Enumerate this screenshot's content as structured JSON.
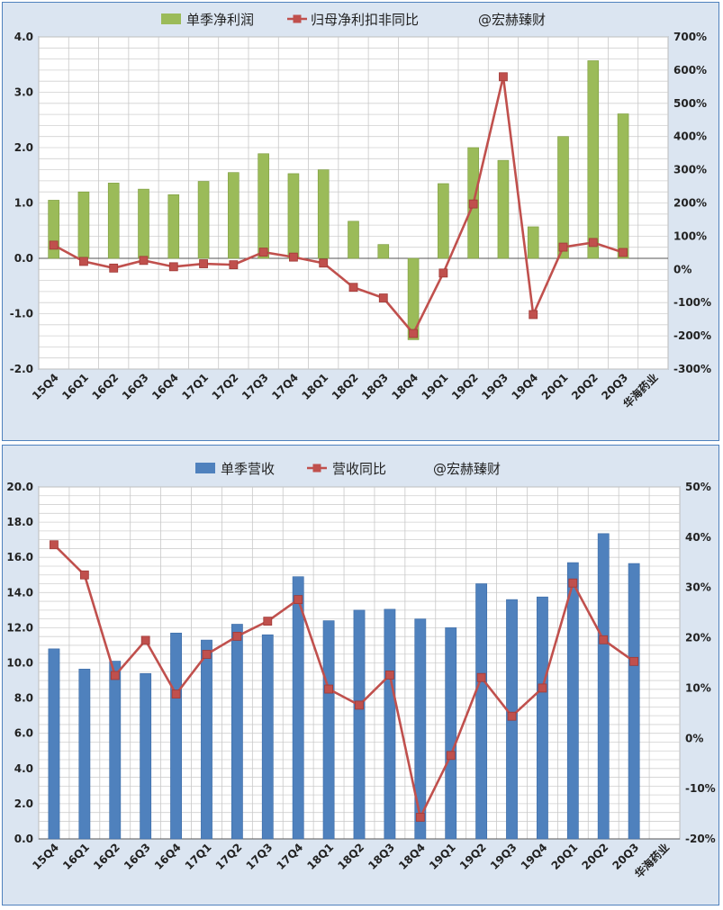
{
  "chart_data": [
    {
      "type": "bar+line",
      "legend": {
        "bar_label": "单季净利润",
        "line_label": "归母净利扣非同比",
        "watermark": "@宏赫臻财",
        "placement": "top"
      },
      "categories": [
        "15Q4",
        "16Q1",
        "16Q2",
        "16Q3",
        "16Q4",
        "17Q1",
        "17Q2",
        "17Q3",
        "17Q4",
        "18Q1",
        "18Q2",
        "18Q3",
        "18Q4",
        "19Q1",
        "19Q2",
        "19Q3",
        "19Q4",
        "20Q1",
        "20Q2",
        "20Q3",
        "华海药业"
      ],
      "series": [
        {
          "name": "单季净利润",
          "axis": "left",
          "kind": "bar",
          "values": [
            1.05,
            1.2,
            1.36,
            1.25,
            1.15,
            1.39,
            1.55,
            1.89,
            1.53,
            1.6,
            0.67,
            0.25,
            -1.47,
            1.35,
            2.0,
            1.77,
            0.57,
            2.2,
            3.57,
            2.61,
            null
          ]
        },
        {
          "name": "归母净利扣非同比",
          "axis": "right",
          "kind": "line",
          "values": [
            73,
            24,
            4,
            27,
            8,
            17,
            14,
            52,
            37,
            19,
            -54,
            -86,
            -193,
            -11,
            197,
            580,
            -136,
            67,
            81,
            51,
            null
          ]
        }
      ],
      "y_left": {
        "min": -2.0,
        "max": 4.0,
        "ticks": [
          "4.0",
          "3.0",
          "2.0",
          "1.0",
          "0.0",
          "-1.0",
          "-2.0"
        ]
      },
      "y_right": {
        "min": -300,
        "max": 700,
        "ticks": [
          "700%",
          "600%",
          "500%",
          "400%",
          "300%",
          "200%",
          "100%",
          "0%",
          "-100%",
          "-200%",
          "-300%"
        ]
      },
      "colors": {
        "bar": "#9bbb59",
        "bar_edge": "#7a9a3c",
        "line": "#c0504d",
        "negative_tick": "#ff0000"
      },
      "grid": true
    },
    {
      "type": "bar+line",
      "legend": {
        "bar_label": "单季营收",
        "line_label": "营收同比",
        "watermark": "@宏赫臻财",
        "placement": "top"
      },
      "categories": [
        "15Q4",
        "16Q1",
        "16Q2",
        "16Q3",
        "16Q4",
        "17Q1",
        "17Q2",
        "17Q3",
        "17Q4",
        "18Q1",
        "18Q2",
        "18Q3",
        "18Q4",
        "19Q1",
        "19Q2",
        "19Q3",
        "19Q4",
        "20Q1",
        "20Q2",
        "20Q3",
        "华海药业"
      ],
      "series": [
        {
          "name": "单季营收",
          "axis": "left",
          "kind": "bar",
          "values": [
            10.8,
            9.65,
            10.1,
            9.4,
            11.7,
            11.3,
            12.2,
            11.6,
            14.9,
            12.4,
            13.0,
            13.05,
            12.5,
            12.0,
            14.5,
            13.6,
            13.75,
            15.7,
            17.35,
            15.65,
            null
          ]
        },
        {
          "name": "营收同比",
          "axis": "right",
          "kind": "line",
          "values": [
            38.5,
            32.5,
            12.5,
            19.5,
            8.8,
            16.7,
            20.3,
            23.3,
            27.6,
            9.8,
            6.6,
            12.6,
            -15.7,
            -3.4,
            12.1,
            4.4,
            10.0,
            30.9,
            19.6,
            15.3,
            null
          ]
        }
      ],
      "y_left": {
        "min": 0,
        "max": 20,
        "ticks": [
          "20.0",
          "18.0",
          "16.0",
          "14.0",
          "12.0",
          "10.0",
          "8.0",
          "6.0",
          "4.0",
          "2.0",
          "0.0"
        ]
      },
      "y_right": {
        "min": -20,
        "max": 50,
        "ticks": [
          "50%",
          "40%",
          "30%",
          "20%",
          "10%",
          "0%",
          "-10%",
          "-20%"
        ]
      },
      "colors": {
        "bar": "#4f81bd",
        "bar_edge": "#3a6aa5",
        "line": "#c0504d"
      },
      "grid": true
    }
  ]
}
